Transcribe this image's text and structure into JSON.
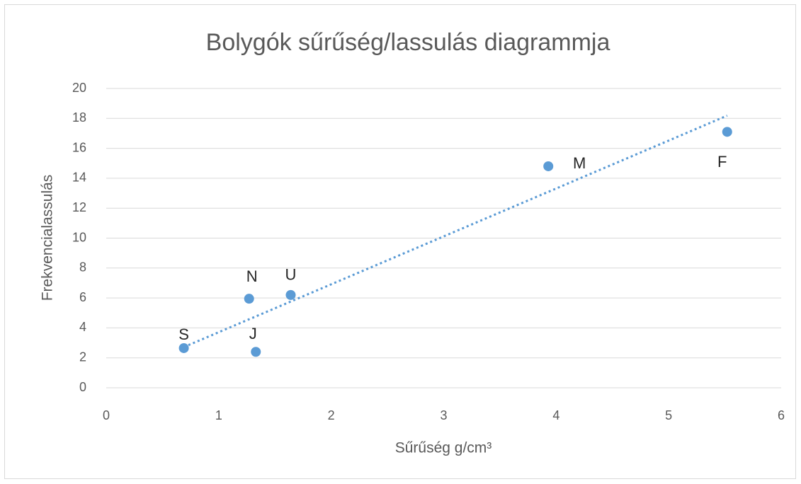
{
  "chart_data": {
    "type": "scatter",
    "title": "Bolygók sűrűség/lassulás diagrammja",
    "x_label": "Sűrűség g/cm³",
    "y_label": "Frekvencialassulás",
    "labels": [
      "S",
      "N",
      "J",
      "U",
      "M",
      "F"
    ],
    "x": [
      0.69,
      1.27,
      1.33,
      1.64,
      3.93,
      5.52
    ],
    "values": [
      2.65,
      5.95,
      2.4,
      6.2,
      14.8,
      17.1
    ],
    "color": "#5b9bd5",
    "xlim": [
      0,
      6
    ],
    "xticks": [
      0,
      1,
      2,
      3,
      4,
      5,
      6
    ],
    "ylim": [
      0,
      20
    ],
    "yticks": [
      0,
      2,
      4,
      6,
      8,
      10,
      12,
      14,
      16,
      18,
      20
    ],
    "grid": true,
    "trendline": "linear"
  }
}
